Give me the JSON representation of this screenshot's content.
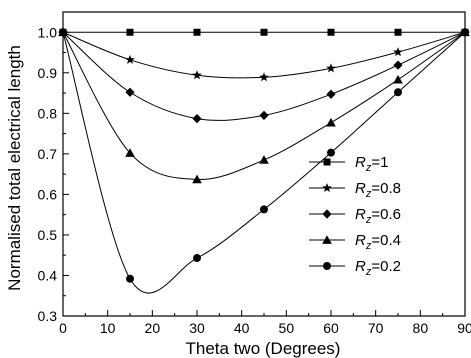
{
  "chart_data": {
    "type": "line",
    "xlabel": "Theta two (Degrees)",
    "ylabel": "Normalised total electrical length",
    "xlim": [
      0,
      90
    ],
    "ylim": [
      0.3,
      1.05
    ],
    "xticks": [
      0,
      10,
      20,
      30,
      40,
      50,
      60,
      70,
      80,
      90
    ],
    "xtick_labels": [
      "0",
      "10",
      "20",
      "30",
      "40",
      "50",
      "60",
      "70",
      "80",
      "90"
    ],
    "yticks": [
      0.3,
      0.4,
      0.5,
      0.6,
      0.7,
      0.8,
      0.9,
      1.0
    ],
    "ytick_labels": [
      "0.3",
      "0.4",
      "0.5",
      "0.6",
      "0.7",
      "0.8",
      "0.9",
      "1.0"
    ],
    "grid": false,
    "legend_position": "right",
    "series": [
      {
        "name": "R_z=1",
        "legend_sub": "z",
        "legend_rest": "=1",
        "marker": "square",
        "x": [
          0,
          15,
          30,
          45,
          60,
          75,
          90
        ],
        "y": [
          1.0,
          1.0,
          1.0,
          1.0,
          1.0,
          1.0,
          1.0
        ]
      },
      {
        "name": "R_z=0.8",
        "legend_sub": "z",
        "legend_rest": "=0.8",
        "marker": "star",
        "x": [
          0,
          15,
          30,
          45,
          60,
          75,
          90
        ],
        "y": [
          1.0,
          0.932,
          0.894,
          0.889,
          0.911,
          0.951,
          1.0
        ]
      },
      {
        "name": "R_z=0.6",
        "legend_sub": "z",
        "legend_rest": "=0.6",
        "marker": "diamond",
        "x": [
          0,
          15,
          30,
          45,
          60,
          75,
          90
        ],
        "y": [
          1.0,
          0.852,
          0.787,
          0.795,
          0.847,
          0.919,
          1.0
        ]
      },
      {
        "name": "R_z=0.4",
        "legend_sub": "z",
        "legend_rest": "=0.4",
        "marker": "triangle",
        "x": [
          0,
          15,
          30,
          45,
          60,
          75,
          90
        ],
        "y": [
          1.0,
          0.702,
          0.637,
          0.685,
          0.777,
          0.883,
          1.0
        ]
      },
      {
        "name": "R_z=0.2",
        "legend_sub": "z",
        "legend_rest": "=0.2",
        "marker": "circle",
        "x": [
          0,
          15,
          30,
          45,
          60,
          75,
          90
        ],
        "y": [
          1.0,
          0.392,
          0.443,
          0.563,
          0.703,
          0.852,
          1.0
        ]
      }
    ],
    "curve_style": "smooth"
  }
}
